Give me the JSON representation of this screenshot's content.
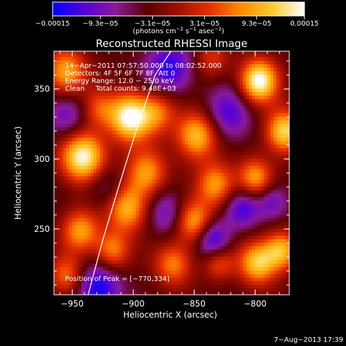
{
  "chart_data": {
    "type": "heatmap",
    "title": "Reconstructed RHESSI Image",
    "xlabel": "Heliocentric X (arcsec)",
    "ylabel": "Heliocentric Y (arcsec)",
    "xlim": [
      -965,
      -772
    ],
    "ylim": [
      203,
      377
    ],
    "x_ticks": [
      -950,
      -900,
      -850,
      -800
    ],
    "y_ticks": [
      250,
      300,
      350
    ],
    "x_tick_labels": [
      "−950",
      "−900",
      "−850",
      "−800"
    ],
    "y_tick_labels": [
      "250",
      "300",
      "350"
    ],
    "colorbar": {
      "range": [
        -0.00015,
        0.00015
      ],
      "ticks": [
        -0.00015,
        -9.3e-05,
        -3.1e-05,
        3.1e-05,
        9.3e-05,
        0.00015
      ],
      "tick_labels": [
        "−0.00015",
        "−9.3e−05",
        "−3.1e−05",
        "3.1e−05",
        "9.3e−05",
        "0.00015"
      ],
      "unit_prefix": "(photons cm",
      "unit_exp1": "−2",
      "unit_mid1": " s",
      "unit_exp2": "−1",
      "unit_mid2": " asec",
      "unit_exp3": "−2",
      "unit_suffix": ")",
      "colors": [
        "#0000ff",
        "#5500d8",
        "#8a1a9a",
        "#5a0000",
        "#a01000",
        "#e83000",
        "#ff8c00",
        "#ffcc30",
        "#ffffff"
      ]
    },
    "annotations": [
      "14−Apr−2011 07:57:50.000 to 08:02:52.000",
      "Detectors: 4F 5F 6F 7F 8F, Att 0",
      "Energy Range: 12.0 − 25.0 keV",
      "Clean     Total counts: 9.48E+03"
    ],
    "peak_label": "Position of Peak = [−770,334]",
    "limb_curve": {
      "x": [
        -937,
        -925,
        -912,
        -897,
        -882,
        -869
      ],
      "y": [
        203,
        242,
        280,
        322,
        360,
        377
      ]
    },
    "sources": [
      {
        "x": -941,
        "y": 302,
        "amp": 1.4,
        "s": 13
      },
      {
        "x": -943,
        "y": 249,
        "amp": 0.9,
        "s": 11
      },
      {
        "x": -955,
        "y": 217,
        "amp": 0.7,
        "s": 10
      },
      {
        "x": -955,
        "y": 362,
        "amp": 1.0,
        "s": 12
      },
      {
        "x": -929,
        "y": 336,
        "amp": 0.6,
        "s": 10
      },
      {
        "x": -903,
        "y": 330,
        "amp": 1.4,
        "s": 12
      },
      {
        "x": -880,
        "y": 334,
        "amp": 0.7,
        "s": 11
      },
      {
        "x": -889,
        "y": 290,
        "amp": 0.9,
        "s": 12
      },
      {
        "x": -905,
        "y": 265,
        "amp": 1.0,
        "s": 12
      },
      {
        "x": -917,
        "y": 235,
        "amp": 0.8,
        "s": 10
      },
      {
        "x": -848,
        "y": 317,
        "amp": 1.1,
        "s": 12
      },
      {
        "x": -832,
        "y": 282,
        "amp": 0.9,
        "s": 11
      },
      {
        "x": -850,
        "y": 255,
        "amp": 1.0,
        "s": 11
      },
      {
        "x": -867,
        "y": 225,
        "amp": 0.8,
        "s": 11
      },
      {
        "x": -830,
        "y": 226,
        "amp": 0.6,
        "s": 9
      },
      {
        "x": -797,
        "y": 356,
        "amp": 1.4,
        "s": 11
      },
      {
        "x": -800,
        "y": 287,
        "amp": 0.9,
        "s": 10
      },
      {
        "x": -798,
        "y": 226,
        "amp": 1.1,
        "s": 11
      },
      {
        "x": -776,
        "y": 320,
        "amp": 1.2,
        "s": 11
      },
      {
        "x": -778,
        "y": 235,
        "amp": 1.0,
        "s": 10
      },
      {
        "x": -835,
        "y": 372,
        "amp": 0.5,
        "s": 10
      },
      {
        "x": -928,
        "y": 208,
        "amp": -0.8,
        "s": 12
      },
      {
        "x": -953,
        "y": 330,
        "amp": -0.5,
        "s": 13
      },
      {
        "x": -922,
        "y": 280,
        "amp": -0.4,
        "s": 11
      },
      {
        "x": -870,
        "y": 365,
        "amp": -0.7,
        "s": 13
      },
      {
        "x": -872,
        "y": 262,
        "amp": -0.5,
        "s": 12
      },
      {
        "x": -835,
        "y": 243,
        "amp": -0.8,
        "s": 10
      },
      {
        "x": -822,
        "y": 332,
        "amp": -0.6,
        "s": 13
      },
      {
        "x": -810,
        "y": 265,
        "amp": -0.6,
        "s": 10
      },
      {
        "x": -786,
        "y": 270,
        "amp": -0.5,
        "s": 9
      }
    ]
  },
  "footer": {
    "date": "7−Aug−2013 17:39"
  }
}
